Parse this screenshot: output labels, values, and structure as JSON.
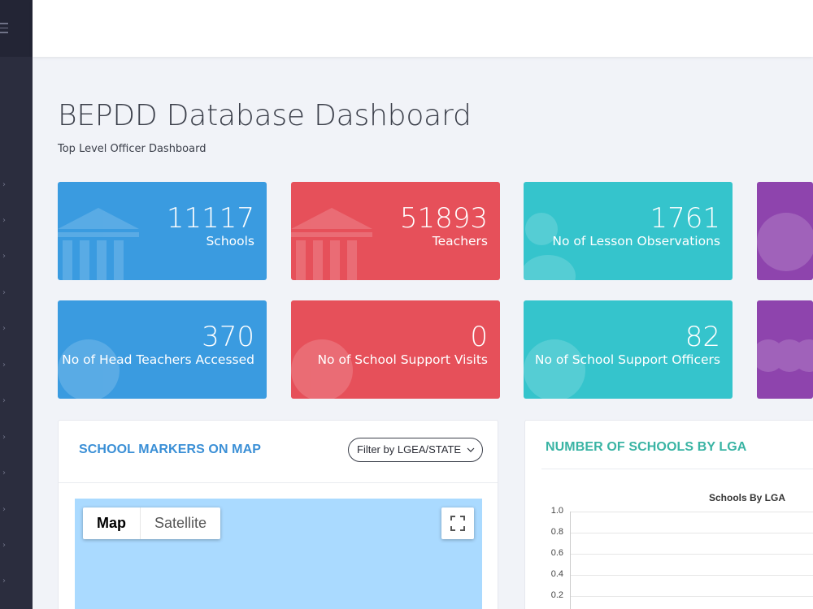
{
  "header": {
    "title": "BEPDD Database Dashboard",
    "subtitle": "Top Level Officer Dashboard"
  },
  "stats": [
    {
      "value": "11117",
      "label": "Schools",
      "color": "#3a9be0",
      "icon": "building-icon"
    },
    {
      "value": "51893",
      "label": "Teachers",
      "color": "#e6505a",
      "icon": "building-icon"
    },
    {
      "value": "1761",
      "label": "No of Lesson Observations",
      "color": "#35c4cc",
      "icon": "users-icon"
    },
    {
      "value": "",
      "label": "",
      "color": "#8e44ad",
      "icon": "globe-icon"
    },
    {
      "value": "370",
      "label": "No of Head Teachers Accessed",
      "color": "#3a9be0",
      "icon": "globe-icon"
    },
    {
      "value": "0",
      "label": "No of School Support Visits",
      "color": "#e6505a",
      "icon": "globe-icon"
    },
    {
      "value": "82",
      "label": "No of School Support Officers",
      "color": "#35c4cc",
      "icon": "globe-icon"
    },
    {
      "value": "",
      "label": "",
      "color": "#8e44ad",
      "icon": "users-icon"
    }
  ],
  "map_panel": {
    "title": "SCHOOL MARKERS ON MAP",
    "title_color": "#3a8fd6",
    "filter_label": "Filter by LGEA/STATE",
    "map_type_options": [
      "Map",
      "Satellite"
    ],
    "selected_map_type": "Map"
  },
  "lga_panel": {
    "title": "NUMBER OF SCHOOLS BY LGA",
    "title_color": "#3ab4a4"
  },
  "chart_data": {
    "type": "bar",
    "title": "Schools By LGA",
    "categories": [],
    "series": [],
    "y_ticks": [
      "1.0",
      "0.8",
      "0.6",
      "0.4",
      "0.2"
    ],
    "ylim": [
      0,
      1.0
    ],
    "grid": true
  }
}
